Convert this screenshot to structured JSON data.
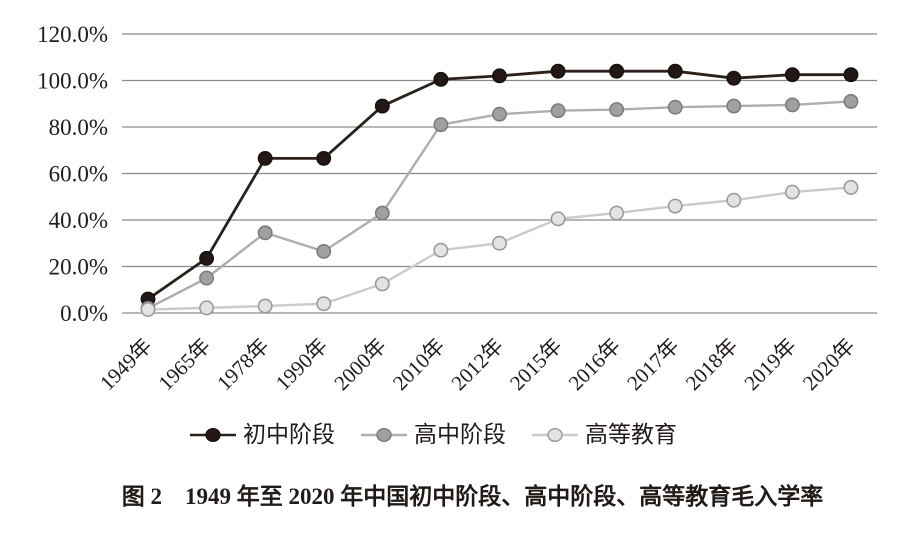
{
  "figure": {
    "caption": "图 2　1949 年至 2020 年中国初中阶段、高中阶段、高等教育毛入学率"
  },
  "chart_data": {
    "type": "line",
    "title": "1949年至2020年中国初中阶段、高中阶段、高等教育毛入学率",
    "xlabel": "",
    "ylabel": "",
    "categories": [
      "1949年",
      "1965年",
      "1978年",
      "1990年",
      "2000年",
      "2010年",
      "2012年",
      "2015年",
      "2016年",
      "2017年",
      "2018年",
      "2019年",
      "2020年"
    ],
    "series": [
      {
        "name": "初中阶段",
        "values": [
          6,
          23.5,
          66.5,
          66.5,
          89,
          100.5,
          102,
          104,
          104,
          104,
          101,
          102.5,
          102.5
        ],
        "line_color": "#2a211d",
        "marker_fill": "#231815",
        "marker_stroke": "#17100d"
      },
      {
        "name": "高中阶段",
        "values": [
          2,
          15,
          34.5,
          26.5,
          43,
          81,
          85.5,
          87,
          87.5,
          88.5,
          89,
          89.5,
          91
        ],
        "line_color": "#aeaeae",
        "marker_fill": "#a0a0a0",
        "marker_stroke": "#7a7a7a"
      },
      {
        "name": "高等教育",
        "values": [
          1.5,
          2.2,
          3,
          4,
          12.5,
          27,
          30,
          40.5,
          43,
          46,
          48.5,
          52,
          54
        ],
        "line_color": "#cbcbcb",
        "marker_fill": "#e3e3e3",
        "marker_stroke": "#979797"
      }
    ],
    "ylim": [
      0,
      120
    ],
    "ytick_step": 20,
    "ytick_labels": [
      "0.0%",
      "20.0%",
      "40.0%",
      "60.0%",
      "80.0%",
      "100.0%",
      "120.0%"
    ],
    "grid": "horizontal-only",
    "gridline_color": "#8a8a8a",
    "text_color": "#201b18",
    "legend_position": "bottom"
  }
}
